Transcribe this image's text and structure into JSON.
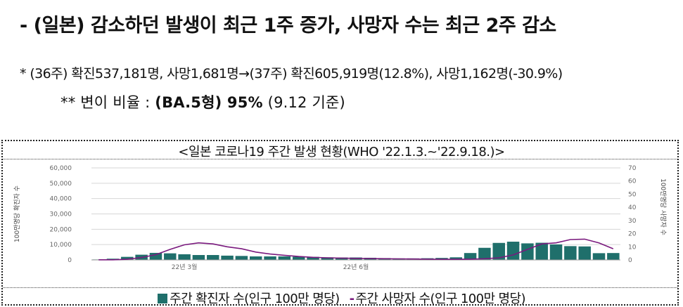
{
  "headline": "- (일본) 감소하던 발생이 최근 1주 증가, 사망자 수는 최근 2주 감소",
  "note1": "* (36주) 확진537,181명, 사망1,681명→(37주) 확진605,919명(12.8%), 사망1,162명(-30.9%)",
  "note2": {
    "prefix": "** 변이 비율 : ",
    "variant": "(BA.5형) 95%",
    "suffix": " (9.12 기준)"
  },
  "chart_data": {
    "type": "bar",
    "title": "<일본 코로나19 주간 발생 현황(WHO '22.1.3.~'22.9.18.)>",
    "ylabel": "100만명당 확진자 수",
    "y2label": "100만명당 사망자 수",
    "ylim": [
      0,
      60000
    ],
    "y2lim": [
      0,
      70
    ],
    "yticks": [
      "60,000",
      "50,000",
      "40,000",
      "30,000",
      "20,000",
      "10,000",
      "0"
    ],
    "y2ticks": [
      "70",
      "60",
      "50",
      "40",
      "30",
      "20",
      "10",
      "0"
    ],
    "xticks": [
      {
        "index": 6,
        "label": "22년 3월"
      },
      {
        "index": 18,
        "label": "22년 6월"
      }
    ],
    "series": [
      {
        "name": "주간 확진자 수(인구 100만 명당)",
        "type": "bar",
        "axis": "left",
        "values": [
          300,
          800,
          2000,
          3400,
          4600,
          4300,
          3700,
          3200,
          3200,
          2800,
          2600,
          2300,
          2300,
          2300,
          2100,
          2000,
          1700,
          1600,
          1600,
          1400,
          1200,
          1000,
          1000,
          1100,
          1300,
          1700,
          4500,
          7900,
          11100,
          11900,
          10800,
          11200,
          10100,
          9000,
          8800,
          4400,
          4500
        ]
      },
      {
        "name": "주간 사망자 수(인구 100만 명당)",
        "type": "line",
        "axis": "right",
        "values": [
          0.1,
          0.1,
          0.5,
          1.8,
          4,
          8,
          11.5,
          13,
          12.2,
          10,
          8.5,
          6,
          4.5,
          3.5,
          2.6,
          2,
          1.6,
          1.4,
          1.2,
          1,
          0.9,
          0.8,
          0.7,
          0.6,
          0.5,
          0.5,
          0.6,
          0.9,
          1.6,
          3.8,
          8,
          12.2,
          13,
          15.5,
          15.8,
          13,
          8.5
        ]
      }
    ],
    "colors": {
      "bar": "#1f6f6b",
      "line": "#7a1a7e"
    }
  }
}
